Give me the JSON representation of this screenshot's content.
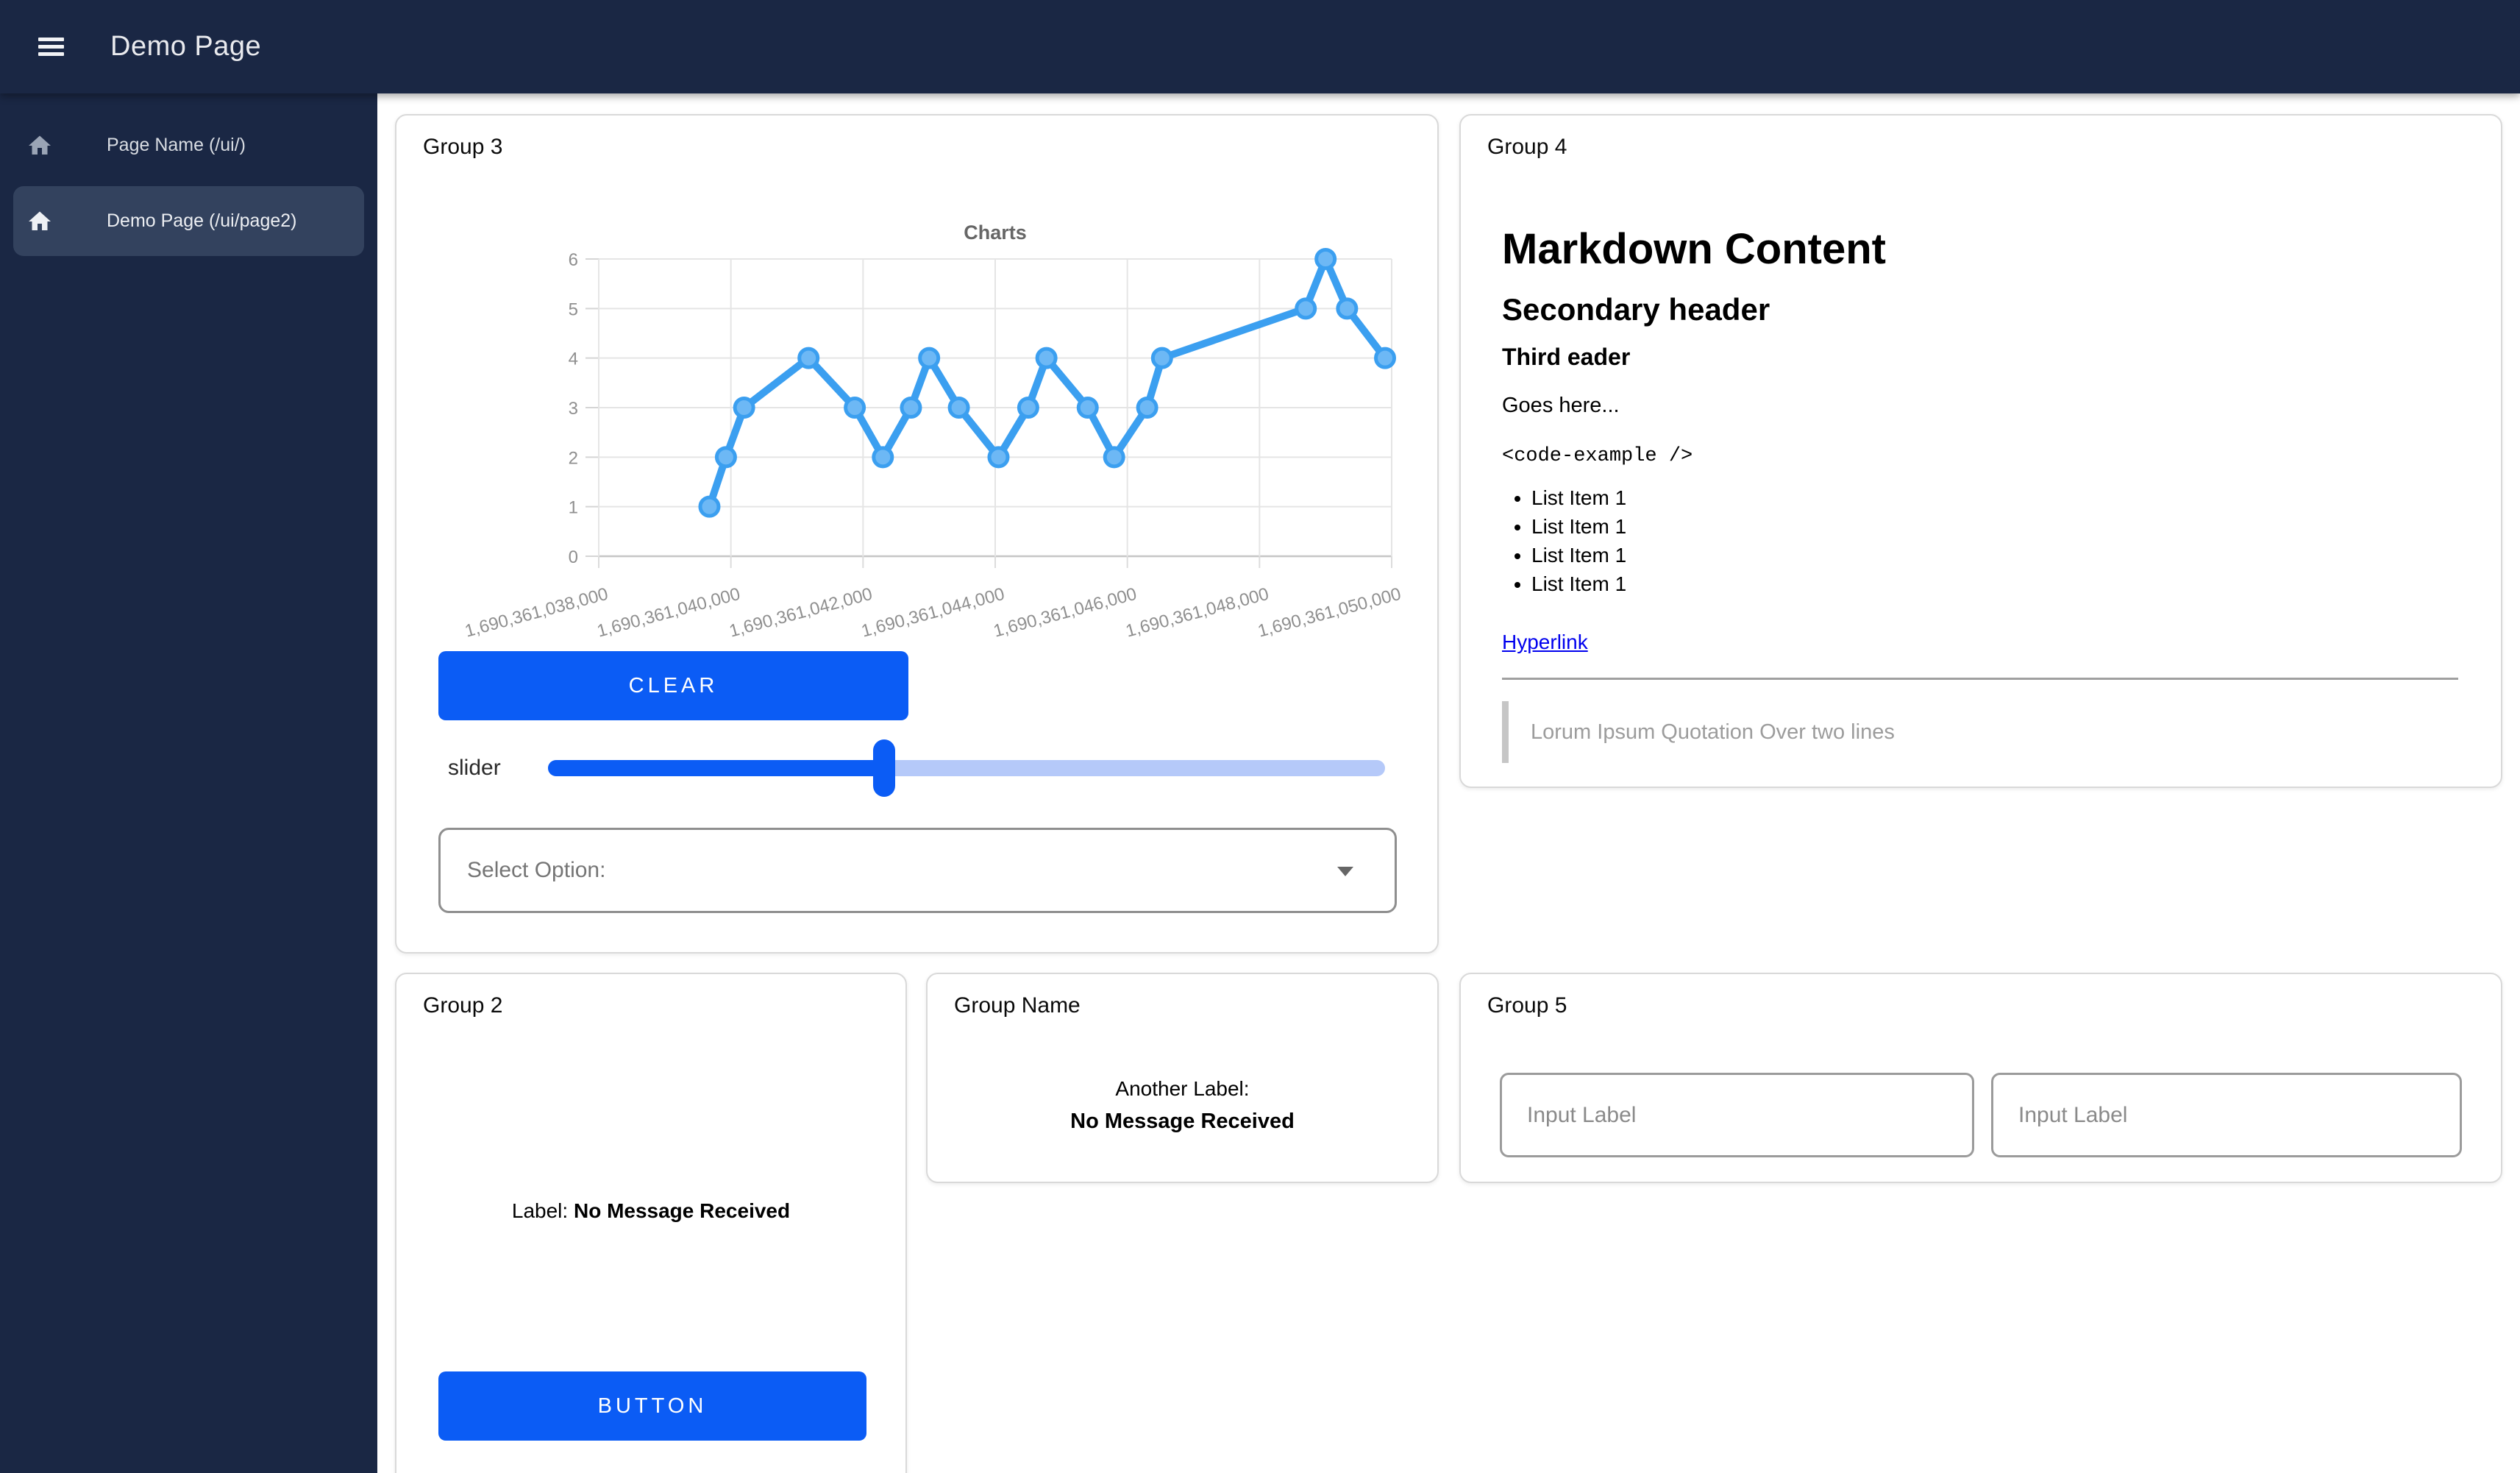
{
  "navbar": {
    "title": "Demo Page"
  },
  "sidebar": {
    "items": [
      {
        "label": "Page Name (/ui/)",
        "icon": "home-icon",
        "active": false
      },
      {
        "label": "Demo Page (/ui/page2)",
        "icon": "home-icon",
        "active": true
      }
    ]
  },
  "groups": {
    "group3": {
      "title": "Group 3",
      "clear_button": "CLEAR",
      "slider_label": "slider",
      "slider_percent": 40.2,
      "select_label": "Select Option:"
    },
    "group4": {
      "title": "Group 4",
      "markdown": {
        "h1": "Markdown Content",
        "h2": "Secondary header",
        "h3": "Third eader",
        "paragraph": "Goes here...",
        "code": "<code-example />",
        "list": [
          "List Item 1",
          "List Item 1",
          "List Item 1",
          "List Item 1"
        ],
        "link": "Hyperlink",
        "blockquote": "Lorum Ipsum Quotation Over two lines"
      }
    },
    "group2": {
      "title": "Group 2",
      "label_prefix": "Label:",
      "label_value": "No Message Received",
      "button": "BUTTON"
    },
    "group_name": {
      "title": "Group Name",
      "label_prefix": "Another Label:",
      "label_value": "No Message Received"
    },
    "group5": {
      "title": "Group 5",
      "inputs": [
        {
          "placeholder": "Input Label"
        },
        {
          "placeholder": "Input Label"
        }
      ]
    }
  },
  "chart_data": {
    "type": "line",
    "title": "Charts",
    "x": [
      1690361039675,
      1690361039925,
      1690361040200,
      1690361041175,
      1690361041875,
      1690361042300,
      1690361042725,
      1690361043000,
      1690361043450,
      1690361044050,
      1690361044500,
      1690361044775,
      1690361045400,
      1690361045800,
      1690361046300,
      1690361046525,
      1690361048700,
      1690361049000,
      1690361049325,
      1690361049900
    ],
    "values": [
      1,
      2,
      3,
      4,
      3,
      2,
      3,
      4,
      3,
      2,
      3,
      4,
      3,
      2,
      3,
      4,
      5,
      6,
      5,
      4
    ],
    "x_ticks": [
      {
        "value": 1690361038000,
        "label": "1,690,361,038,000"
      },
      {
        "value": 1690361040000,
        "label": "1,690,361,040,000"
      },
      {
        "value": 1690361042000,
        "label": "1,690,361,042,000"
      },
      {
        "value": 1690361044000,
        "label": "1,690,361,044,000"
      },
      {
        "value": 1690361046000,
        "label": "1,690,361,046,000"
      },
      {
        "value": 1690361048000,
        "label": "1,690,361,048,000"
      },
      {
        "value": 1690361050000,
        "label": "1,690,361,050,000"
      }
    ],
    "y_ticks": [
      0,
      1,
      2,
      3,
      4,
      5,
      6
    ],
    "xlim": [
      1690361038000,
      1690361050000
    ],
    "ylim": [
      0,
      6
    ],
    "grid": true,
    "legend": false,
    "line_color": "#3b9ff0",
    "point_fill": "#6db8f5"
  },
  "colors": {
    "navbar_bg": "#1a2744",
    "sidebar_active_bg": "#33425e",
    "primary": "#0b5cf5",
    "slider_inactive": "#b5c9f9",
    "link": "#0000ee"
  }
}
